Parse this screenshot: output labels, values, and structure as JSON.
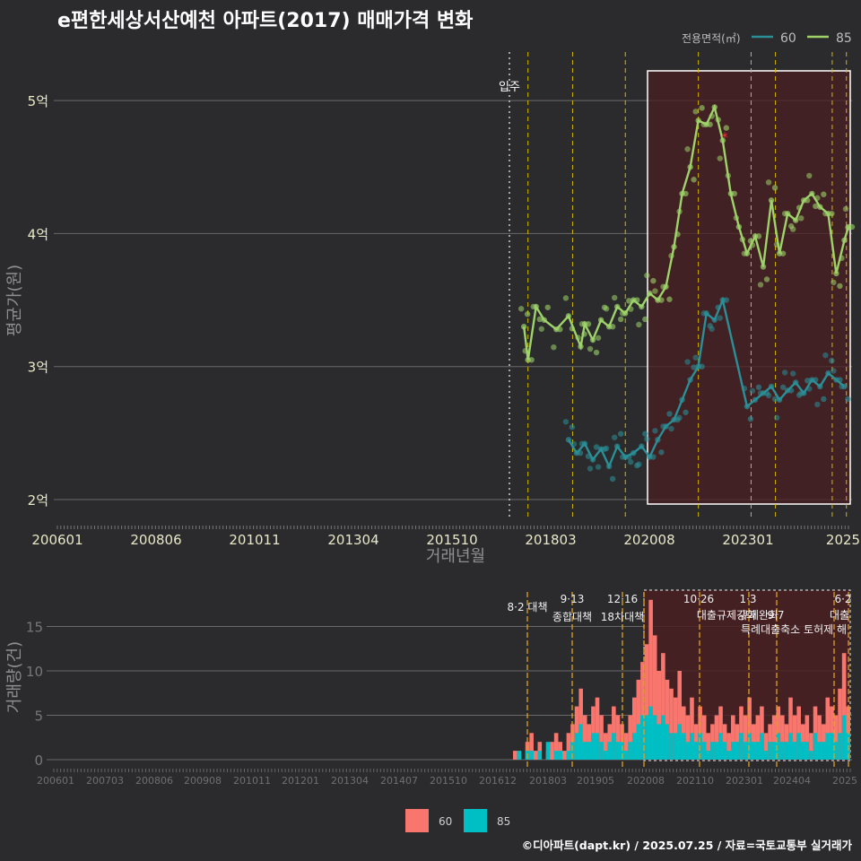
{
  "title": "e편한세상서산예천 아파트(2017) 매매가격 변화",
  "legend": {
    "title": "전용면적(㎡)",
    "items": [
      {
        "label": "60",
        "color": "#2a8f97"
      },
      {
        "label": "85",
        "color": "#9ed36a"
      }
    ]
  },
  "bottom_legend": {
    "items": [
      {
        "label": "60",
        "color": "#f8766d"
      },
      {
        "label": "85",
        "color": "#00bfc4"
      }
    ]
  },
  "footer": "©디아파트(dapt.kr) / 2025.07.25 / 자료=국토교통부 실거래가",
  "colors": {
    "background": "#2b2b2d",
    "line60": "#2a8f97",
    "line85": "#9ed36a",
    "highlight": "#4a1f21",
    "vline": "#d4b800",
    "bar60": "#f8766d",
    "bar85": "#00bfc4"
  },
  "chart_data": [
    {
      "type": "line",
      "xlabel": "거래년월",
      "ylabel": "평균가(원)",
      "x_ticks": [
        "200601",
        "200806",
        "201011",
        "201304",
        "201510",
        "201803",
        "202008",
        "202301",
        "2025"
      ],
      "y_ticks": [
        "2억",
        "3억",
        "4억",
        "5억"
      ],
      "y_values": [
        2,
        3,
        4,
        5
      ],
      "ylim": [
        1.85,
        5.3
      ],
      "annotations": [
        {
          "label": "입주",
          "x": 2017.0
        }
      ],
      "highlight_range": [
        "2020-07",
        "2025-07"
      ],
      "policy_lines": [
        2017.6,
        2018.7,
        2020.0,
        2021.8,
        2023.1,
        2023.7,
        2025.1,
        2025.45
      ],
      "series": [
        {
          "name": "85",
          "x": [
            2017.5,
            2017.6,
            2017.8,
            2018.0,
            2018.3,
            2018.6,
            2018.9,
            2019.0,
            2019.2,
            2019.4,
            2019.6,
            2019.8,
            2020.0,
            2020.2,
            2020.4,
            2020.6,
            2020.8,
            2021.0,
            2021.2,
            2021.4,
            2021.6,
            2021.8,
            2022.0,
            2022.2,
            2022.4,
            2022.6,
            2022.8,
            2023.0,
            2023.2,
            2023.4,
            2023.6,
            2023.8,
            2024.0,
            2024.2,
            2024.4,
            2024.6,
            2024.8,
            2025.0,
            2025.2,
            2025.4,
            2025.5
          ],
          "values": [
            3.3,
            3.05,
            3.45,
            3.35,
            3.28,
            3.38,
            3.15,
            3.32,
            3.2,
            3.35,
            3.3,
            3.45,
            3.4,
            3.5,
            3.45,
            3.55,
            3.5,
            3.6,
            3.9,
            4.3,
            4.5,
            4.85,
            4.82,
            4.95,
            4.7,
            4.3,
            4.05,
            3.85,
            3.98,
            3.75,
            4.25,
            3.85,
            4.15,
            4.1,
            4.25,
            4.3,
            4.2,
            4.15,
            3.7,
            3.95,
            4.05
          ]
        },
        {
          "name": "60",
          "x": [
            2018.6,
            2018.8,
            2019.0,
            2019.2,
            2019.4,
            2019.6,
            2019.8,
            2020.0,
            2020.2,
            2020.4,
            2020.6,
            2020.8,
            2021.0,
            2021.2,
            2021.4,
            2021.6,
            2021.8,
            2022.0,
            2022.2,
            2022.4,
            2023.0,
            2023.2,
            2023.4,
            2023.6,
            2023.8,
            2024.0,
            2024.2,
            2024.4,
            2024.6,
            2024.8,
            2025.0,
            2025.2,
            2025.4
          ],
          "values": [
            2.45,
            2.35,
            2.42,
            2.3,
            2.38,
            2.25,
            2.4,
            2.32,
            2.35,
            2.4,
            2.32,
            2.45,
            2.55,
            2.6,
            2.75,
            2.9,
            3.0,
            3.4,
            3.35,
            3.5,
            2.7,
            2.75,
            2.8,
            2.85,
            2.75,
            2.82,
            2.88,
            2.8,
            2.9,
            2.85,
            2.95,
            2.9,
            2.85
          ]
        }
      ]
    },
    {
      "type": "bar",
      "xlabel": "",
      "ylabel": "거래량(건)",
      "x_ticks": [
        "200601",
        "200703",
        "200806",
        "200908",
        "201011",
        "201201",
        "201304",
        "201407",
        "201510",
        "201612",
        "201803",
        "201905",
        "202008",
        "202110",
        "202301",
        "202404",
        "2025"
      ],
      "y_ticks": [
        "0",
        "5",
        "10",
        "15"
      ],
      "ylim": [
        0,
        19
      ],
      "highlight_range": [
        "2020-07",
        "2025-07"
      ],
      "policy_labels": [
        {
          "label": "8·2 대책",
          "line": 1
        },
        {
          "label": "9·13",
          "line": 1
        },
        {
          "label": "종합대책",
          "line": 2
        },
        {
          "label": "12·16",
          "line": 1
        },
        {
          "label": "18차대책",
          "line": 2
        },
        {
          "label": "10·26",
          "line": 1
        },
        {
          "label": "대출규제강화",
          "line": 2
        },
        {
          "label": "1·3",
          "line": 1
        },
        {
          "label": "규제완화",
          "line": 2
        },
        {
          "label": "9·7",
          "line": 2
        },
        {
          "label": "특례대출축소 토허제 해",
          "line": 3
        },
        {
          "label": "6·2",
          "line": 1
        },
        {
          "label": "대출",
          "line": 2
        }
      ],
      "series": [
        {
          "name": "60",
          "values": [
            1,
            0,
            0,
            2,
            3,
            1,
            2,
            0,
            1,
            2,
            3,
            2,
            1,
            3,
            4,
            6,
            8,
            5,
            4,
            6,
            7,
            5,
            3,
            4,
            6,
            5,
            4,
            3,
            5,
            7,
            9,
            11,
            13,
            18,
            14,
            10,
            12,
            9,
            8,
            7,
            10,
            6,
            5,
            7,
            4,
            6,
            5,
            3,
            4,
            5,
            6,
            4,
            3,
            5,
            4,
            6,
            5,
            7,
            4,
            5,
            6,
            3,
            4,
            5,
            6,
            5,
            4,
            7,
            5,
            6,
            4,
            5,
            3,
            6,
            5,
            4,
            7,
            6,
            5,
            8,
            12,
            6
          ]
        },
        {
          "name": "85",
          "values": [
            0,
            1,
            0,
            1,
            1,
            0,
            1,
            0,
            2,
            0,
            1,
            1,
            0,
            1,
            2,
            3,
            4,
            2,
            2,
            3,
            3,
            2,
            1,
            2,
            3,
            2,
            2,
            1,
            2,
            3,
            4,
            5,
            5,
            6,
            5,
            4,
            5,
            4,
            3,
            3,
            4,
            3,
            2,
            3,
            2,
            3,
            2,
            1,
            2,
            2,
            3,
            2,
            1,
            2,
            2,
            3,
            2,
            3,
            2,
            2,
            3,
            1,
            2,
            2,
            3,
            2,
            2,
            3,
            2,
            3,
            2,
            2,
            1,
            3,
            2,
            2,
            3,
            3,
            2,
            3,
            5,
            3
          ]
        }
      ]
    }
  ]
}
